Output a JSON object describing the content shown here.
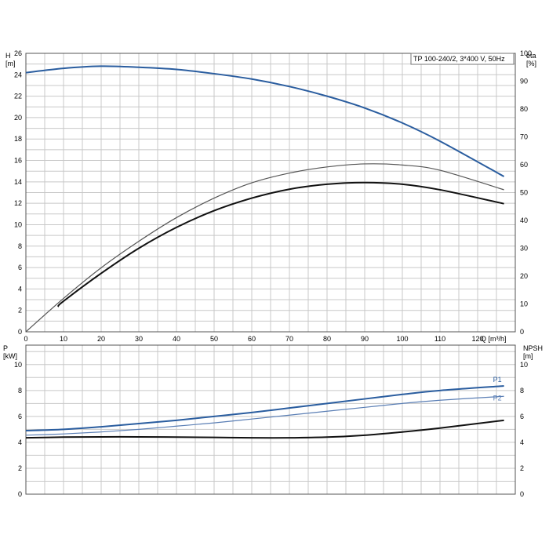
{
  "chart_data": [
    {
      "type": "line",
      "title": "TP 100-240/2, 3*400 V, 50Hz",
      "xlabel": "Q [m³/h]",
      "ylabel": "H\n[m]",
      "y2label": "eta\n[%]",
      "xlim": [
        0,
        130
      ],
      "ylim": [
        0,
        26
      ],
      "y2lim": [
        0,
        100
      ],
      "x_ticks": [
        0,
        10,
        20,
        30,
        40,
        50,
        60,
        70,
        80,
        90,
        100,
        110,
        120
      ],
      "y_ticks": [
        0,
        2,
        4,
        6,
        8,
        10,
        12,
        14,
        16,
        18,
        20,
        22,
        24,
        26
      ],
      "y2_ticks": [
        0,
        10,
        20,
        30,
        40,
        50,
        60,
        70,
        80,
        90,
        100
      ],
      "grid": true,
      "series": [
        {
          "name": "",
          "axis": "left",
          "color": "#2a5d9f",
          "x": [
            0,
            10,
            20,
            30,
            40,
            50,
            60,
            70,
            80,
            90,
            100,
            110,
            127
          ],
          "y": [
            24.2,
            24.6,
            24.8,
            24.7,
            24.5,
            24.1,
            23.6,
            22.9,
            22.0,
            20.9,
            19.5,
            17.8,
            14.5
          ]
        },
        {
          "name": "",
          "axis": "right",
          "color": "#555555",
          "x": [
            0,
            10,
            20,
            30,
            40,
            50,
            60,
            70,
            80,
            90,
            100,
            110,
            127
          ],
          "y": [
            0,
            12,
            23,
            32.5,
            41,
            48,
            53.5,
            57,
            59.2,
            60.3,
            59.9,
            58,
            51
          ]
        },
        {
          "name": "",
          "axis": "right",
          "color": "#111111",
          "x": [
            8.5,
            10,
            20,
            30,
            40,
            50,
            60,
            70,
            80,
            90,
            100,
            110,
            127
          ],
          "y": [
            9,
            11,
            21,
            30,
            37.5,
            43.5,
            48,
            51.2,
            53,
            53.6,
            53,
            51,
            46
          ]
        }
      ]
    },
    {
      "type": "line",
      "title": "",
      "xlabel": "",
      "ylabel": "P\n[kW]",
      "y2label": "NPSH\n[m]",
      "xlim": [
        0,
        130
      ],
      "ylim": [
        0,
        11.5
      ],
      "y2lim": [
        0,
        11.5
      ],
      "y_ticks": [
        0,
        2,
        4,
        6,
        8,
        10
      ],
      "y2_ticks": [
        0,
        2,
        4,
        6,
        8,
        10
      ],
      "grid": true,
      "series": [
        {
          "name": "P1",
          "axis": "left",
          "color": "#2a5d9f",
          "x": [
            0,
            10,
            20,
            30,
            40,
            50,
            60,
            70,
            80,
            90,
            100,
            110,
            127
          ],
          "y": [
            4.9,
            5.0,
            5.2,
            5.45,
            5.7,
            6.0,
            6.3,
            6.65,
            7.0,
            7.35,
            7.7,
            8.0,
            8.35
          ]
        },
        {
          "name": "P2",
          "axis": "left",
          "color": "#5b7fb5",
          "x": [
            0,
            10,
            20,
            30,
            40,
            50,
            60,
            70,
            80,
            90,
            100,
            110,
            127
          ],
          "y": [
            4.55,
            4.65,
            4.8,
            5.0,
            5.25,
            5.5,
            5.8,
            6.1,
            6.4,
            6.7,
            7.0,
            7.25,
            7.55
          ]
        },
        {
          "name": "",
          "axis": "right",
          "color": "#111111",
          "x": [
            0,
            10,
            20,
            30,
            40,
            50,
            60,
            70,
            80,
            90,
            100,
            110,
            127
          ],
          "y": [
            4.35,
            4.4,
            4.42,
            4.42,
            4.4,
            4.38,
            4.35,
            4.35,
            4.4,
            4.55,
            4.8,
            5.1,
            5.7
          ]
        }
      ]
    }
  ]
}
